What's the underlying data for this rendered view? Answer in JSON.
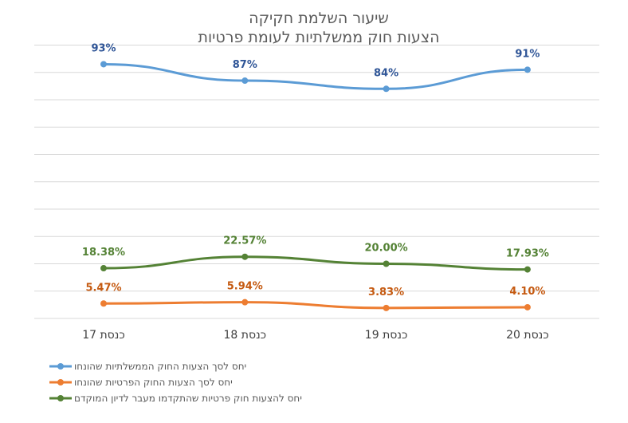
{
  "chart_data": {
    "type": "line",
    "title_lines": [
      "שיעור השלמת חקיקה",
      "הצעות חוק ממשלתיות לעומת פרטיות"
    ],
    "categories": [
      "כנסת 17",
      "כנסת 18",
      "כנסת 19",
      "כנסת 20"
    ],
    "series": [
      {
        "name": "יחס לסך הצעות החוק הממשלתיות שהונחו",
        "color": "#5b9bd5",
        "values": [
          93,
          87,
          84,
          91
        ],
        "labels": [
          "93%",
          "87%",
          "84%",
          "91%"
        ],
        "label_color": "#2f5597"
      },
      {
        "name": "יחס להצעות חוק פרטיות שהתקדמו מעבר לדיון המוקדם",
        "color": "#548235",
        "values": [
          18.38,
          22.57,
          20.0,
          17.93
        ],
        "labels": [
          "18.38%",
          "22.57%",
          "20.00%",
          "17.93%"
        ],
        "label_color": "#548235"
      },
      {
        "name": "יחס לסך הצעות החוק הפרטיות שהונחו",
        "color": "#ed7d31",
        "values": [
          5.47,
          5.94,
          3.83,
          4.1
        ],
        "labels": [
          "5.47%",
          "5.94%",
          "3.83%",
          "4.10%"
        ],
        "label_color": "#c55a11"
      }
    ],
    "legend_order": [
      0,
      2,
      1
    ],
    "ylim": [
      0,
      100
    ],
    "grid": true,
    "legend_position": "bottom-left"
  }
}
